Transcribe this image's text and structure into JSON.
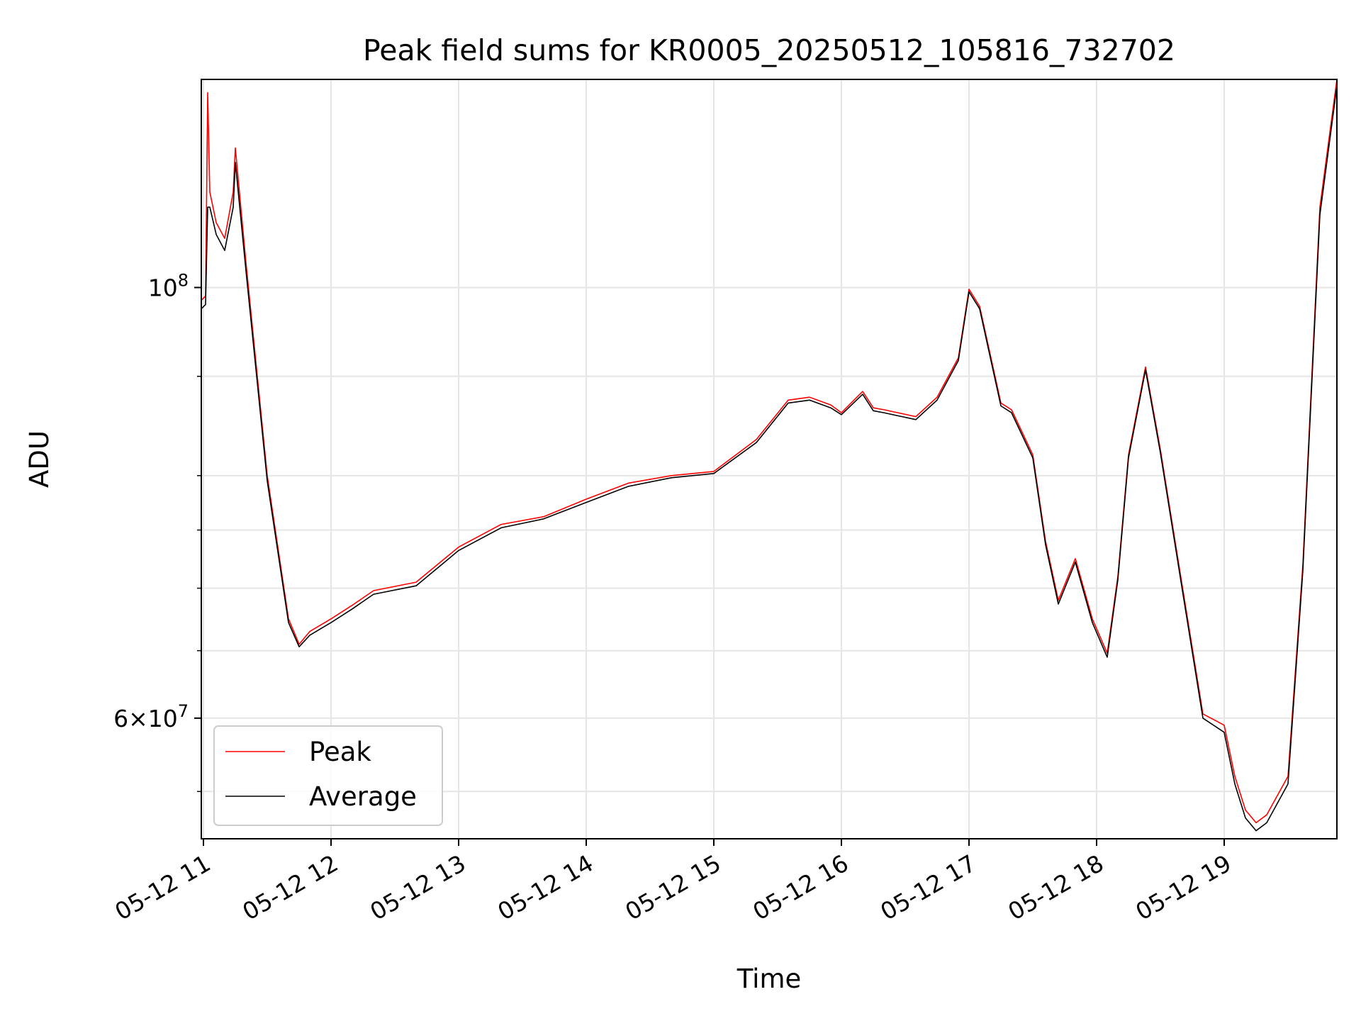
{
  "chart_data": {
    "type": "line",
    "title": "Peak field sums for KR0005_20250512_105816_732702",
    "xlabel": "Time",
    "ylabel": "ADU",
    "y_scale": "log",
    "ylim": [
      52000000,
      128000000
    ],
    "xlim": [
      "2025-05-12 10:59",
      "2025-05-12 19:53"
    ],
    "grid": true,
    "legend_position": "lower-left",
    "x_ticks": [
      "05-12 11",
      "05-12 12",
      "05-12 13",
      "05-12 14",
      "05-12 15",
      "05-12 16",
      "05-12 17",
      "05-12 18",
      "05-12 19"
    ],
    "x_tick_values": [
      "2025-05-12 11:00",
      "2025-05-12 12:00",
      "2025-05-12 13:00",
      "2025-05-12 14:00",
      "2025-05-12 15:00",
      "2025-05-12 16:00",
      "2025-05-12 17:00",
      "2025-05-12 18:00",
      "2025-05-12 19:00"
    ],
    "y_ticks": [
      {
        "value": 100000000,
        "base": "10",
        "exp": "8",
        "mantissa": ""
      },
      {
        "value": 60000000,
        "base": "10",
        "exp": "7",
        "mantissa": "6"
      }
    ],
    "y_minor_ticks": [
      55000000,
      65000000,
      70000000,
      75000000,
      80000000,
      90000000
    ],
    "series": [
      {
        "name": "Peak",
        "color": "#ff0000",
        "x": [
          "2025-05-12 10:59",
          "2025-05-12 11:01",
          "2025-05-12 11:02",
          "2025-05-12 11:03",
          "2025-05-12 11:06",
          "2025-05-12 11:10",
          "2025-05-12 11:14",
          "2025-05-12 11:15",
          "2025-05-12 11:20",
          "2025-05-12 11:30",
          "2025-05-12 11:40",
          "2025-05-12 11:45",
          "2025-05-12 11:50",
          "2025-05-12 12:00",
          "2025-05-12 12:10",
          "2025-05-12 12:20",
          "2025-05-12 12:40",
          "2025-05-12 13:00",
          "2025-05-12 13:20",
          "2025-05-12 13:40",
          "2025-05-12 14:00",
          "2025-05-12 14:20",
          "2025-05-12 14:40",
          "2025-05-12 15:00",
          "2025-05-12 15:20",
          "2025-05-12 15:35",
          "2025-05-12 15:45",
          "2025-05-12 15:55",
          "2025-05-12 16:00",
          "2025-05-12 16:10",
          "2025-05-12 16:15",
          "2025-05-12 16:20",
          "2025-05-12 16:35",
          "2025-05-12 16:45",
          "2025-05-12 16:55",
          "2025-05-12 17:00",
          "2025-05-12 17:05",
          "2025-05-12 17:15",
          "2025-05-12 17:20",
          "2025-05-12 17:30",
          "2025-05-12 17:36",
          "2025-05-12 17:42",
          "2025-05-12 17:50",
          "2025-05-12 17:58",
          "2025-05-12 18:05",
          "2025-05-12 18:10",
          "2025-05-12 18:15",
          "2025-05-12 18:23",
          "2025-05-12 18:30",
          "2025-05-12 18:40",
          "2025-05-12 18:50",
          "2025-05-12 19:00",
          "2025-05-12 19:05",
          "2025-05-12 19:10",
          "2025-05-12 19:15",
          "2025-05-12 19:20",
          "2025-05-12 19:30",
          "2025-05-12 19:37",
          "2025-05-12 19:45",
          "2025-05-12 19:53"
        ],
        "y": [
          98500000,
          99000000,
          126000000,
          112000000,
          108000000,
          106000000,
          112000000,
          118000000,
          103000000,
          80000000,
          67500000,
          65500000,
          66500000,
          67500000,
          68600000,
          69800000,
          70500000,
          73500000,
          75500000,
          76200000,
          77800000,
          79300000,
          80000000,
          80400000,
          83500000,
          87500000,
          87800000,
          87000000,
          86200000,
          88400000,
          86700000,
          86500000,
          85800000,
          87800000,
          92000000,
          99800000,
          97800000,
          87200000,
          86500000,
          82000000,
          74000000,
          69000000,
          72500000,
          67500000,
          64800000,
          71000000,
          82000000,
          91000000,
          82500000,
          70500000,
          60300000,
          59500000,
          56000000,
          53800000,
          53000000,
          53500000,
          56000000,
          72000000,
          110000000,
          128000000
        ]
      },
      {
        "name": "Average",
        "color": "#000000",
        "x": [
          "2025-05-12 10:59",
          "2025-05-12 11:01",
          "2025-05-12 11:02",
          "2025-05-12 11:03",
          "2025-05-12 11:06",
          "2025-05-12 11:10",
          "2025-05-12 11:14",
          "2025-05-12 11:15",
          "2025-05-12 11:20",
          "2025-05-12 11:30",
          "2025-05-12 11:40",
          "2025-05-12 11:45",
          "2025-05-12 11:50",
          "2025-05-12 12:00",
          "2025-05-12 12:10",
          "2025-05-12 12:20",
          "2025-05-12 12:40",
          "2025-05-12 13:00",
          "2025-05-12 13:20",
          "2025-05-12 13:40",
          "2025-05-12 14:00",
          "2025-05-12 14:20",
          "2025-05-12 14:40",
          "2025-05-12 15:00",
          "2025-05-12 15:20",
          "2025-05-12 15:35",
          "2025-05-12 15:45",
          "2025-05-12 15:55",
          "2025-05-12 16:00",
          "2025-05-12 16:10",
          "2025-05-12 16:15",
          "2025-05-12 16:20",
          "2025-05-12 16:35",
          "2025-05-12 16:45",
          "2025-05-12 16:55",
          "2025-05-12 17:00",
          "2025-05-12 17:05",
          "2025-05-12 17:15",
          "2025-05-12 17:20",
          "2025-05-12 17:30",
          "2025-05-12 17:36",
          "2025-05-12 17:42",
          "2025-05-12 17:50",
          "2025-05-12 17:58",
          "2025-05-12 18:05",
          "2025-05-12 18:10",
          "2025-05-12 18:15",
          "2025-05-12 18:23",
          "2025-05-12 18:30",
          "2025-05-12 18:40",
          "2025-05-12 18:50",
          "2025-05-12 19:00",
          "2025-05-12 19:05",
          "2025-05-12 19:10",
          "2025-05-12 19:15",
          "2025-05-12 19:20",
          "2025-05-12 19:30",
          "2025-05-12 19:37",
          "2025-05-12 19:45",
          "2025-05-12 19:53"
        ],
        "y": [
          97500000,
          98000000,
          110000000,
          110000000,
          106500000,
          104500000,
          110000000,
          116000000,
          102000000,
          79500000,
          67200000,
          65300000,
          66200000,
          67200000,
          68300000,
          69500000,
          70200000,
          73200000,
          75200000,
          76000000,
          77500000,
          79000000,
          79800000,
          80200000,
          83200000,
          87200000,
          87500000,
          86700000,
          86000000,
          88100000,
          86400000,
          86200000,
          85500000,
          87500000,
          91700000,
          99500000,
          97500000,
          86900000,
          86200000,
          81700000,
          73700000,
          68700000,
          72200000,
          67200000,
          64500000,
          70700000,
          81700000,
          90700000,
          82200000,
          70200000,
          60000000,
          59000000,
          55500000,
          53300000,
          52500000,
          53000000,
          55500000,
          71500000,
          109000000,
          127000000
        ]
      }
    ]
  }
}
